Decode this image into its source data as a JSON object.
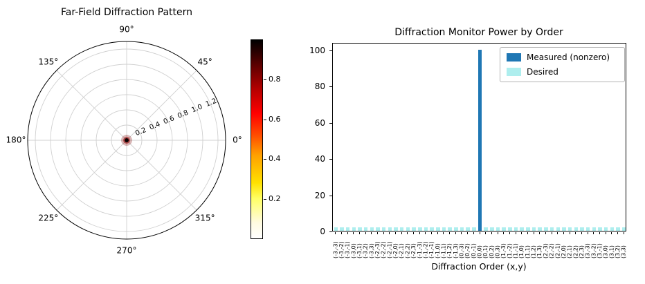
{
  "figure": {
    "background": "#ffffff"
  },
  "chart_data": [
    {
      "type": "heatmap",
      "projection": "polar",
      "title": "Far-Field Diffraction Pattern",
      "theta_ticks_deg": [
        0,
        45,
        90,
        135,
        180,
        225,
        270,
        315
      ],
      "theta_tick_labels": [
        "0°",
        "45°",
        "90°",
        "135°",
        "180°",
        "225°",
        "270°",
        "315°"
      ],
      "r_ticks": [
        0.2,
        0.4,
        0.6,
        0.8,
        1.0,
        1.2
      ],
      "r_tick_labels": [
        "0.2",
        "0.4",
        "0.6",
        "0.8",
        "1.0",
        "1.2"
      ],
      "r_max": 1.3,
      "r_label_angle_deg": 22.5,
      "grid": true,
      "colormap": "hot_r",
      "data_summary": "Nearly all intensity concentrated in a single dark spot at the origin (r ≈ 0); remainder of field ≈ 0",
      "colorbar": {
        "vmin": 0.0,
        "vmax": 1.0,
        "ticks": [
          0.2,
          0.4,
          0.6,
          0.8
        ],
        "tick_labels": [
          "0.2",
          "0.4",
          "0.6",
          "0.8"
        ]
      }
    },
    {
      "type": "bar",
      "title": "Diffraction Monitor Power by Order",
      "xlabel": "Diffraction Order (x,y)",
      "ylabel": "",
      "ylim": [
        0,
        100
      ],
      "yticks": [
        0,
        20,
        40,
        60,
        80,
        100
      ],
      "ytick_labels": [
        "0",
        "20",
        "40",
        "60",
        "80",
        "100"
      ],
      "legend_position": "upper right",
      "grid": false,
      "categories": [
        "(-3,-3)",
        "(-3,-2)",
        "(-3,-1)",
        "(-3,0)",
        "(-3,1)",
        "(-3,2)",
        "(-3,3)",
        "(-2,-3)",
        "(-2,-2)",
        "(-2,-1)",
        "(-2,0)",
        "(-2,1)",
        "(-2,2)",
        "(-2,3)",
        "(-1,-3)",
        "(-1,-2)",
        "(-1,-1)",
        "(-1,0)",
        "(-1,1)",
        "(-1,2)",
        "(-1,3)",
        "(0,-3)",
        "(0,-2)",
        "(0,-1)",
        "(0,0)",
        "(0,1)",
        "(0,2)",
        "(0,3)",
        "(1,-3)",
        "(1,-2)",
        "(1,-1)",
        "(1,0)",
        "(1,1)",
        "(1,2)",
        "(1,3)",
        "(2,-3)",
        "(2,-2)",
        "(2,-1)",
        "(2,0)",
        "(2,1)",
        "(2,2)",
        "(2,3)",
        "(3,-3)",
        "(3,-2)",
        "(3,-1)",
        "(3,0)",
        "(3,1)",
        "(3,2)",
        "(3,3)"
      ],
      "series": [
        {
          "name": "Measured (nonzero)",
          "color": "#1f77b4",
          "values": [
            0,
            0,
            0,
            0,
            0,
            0,
            0,
            0,
            0,
            0,
            0,
            0,
            0,
            0,
            0,
            0,
            0,
            0,
            0,
            0,
            0,
            0,
            0,
            0,
            100,
            0,
            0,
            0,
            0,
            0,
            0,
            0,
            0,
            0,
            0,
            0,
            0,
            0,
            0,
            0,
            0,
            0,
            0,
            0,
            0,
            0,
            0,
            0,
            0
          ]
        },
        {
          "name": "Desired",
          "color": "#aeeeee",
          "values": [
            2,
            2,
            2,
            2,
            2,
            2,
            2,
            2,
            2,
            2,
            2,
            2,
            2,
            2,
            2,
            2,
            2,
            2,
            2,
            2,
            2,
            2,
            2,
            2,
            2,
            2,
            2,
            2,
            2,
            2,
            2,
            2,
            2,
            2,
            2,
            2,
            2,
            2,
            2,
            2,
            2,
            2,
            2,
            2,
            2,
            2,
            2,
            2,
            2
          ]
        }
      ]
    }
  ]
}
